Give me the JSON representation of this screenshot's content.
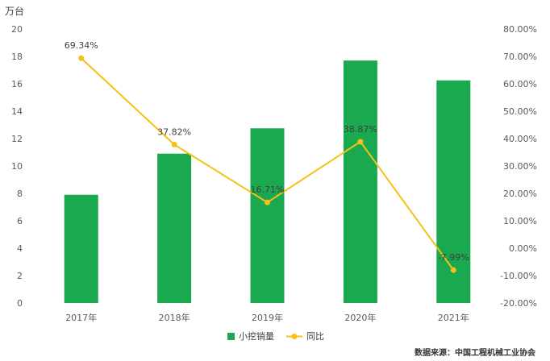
{
  "chart_data": {
    "type": "bar",
    "left_unit": "万台",
    "categories": [
      "2017年",
      "2018年",
      "2019年",
      "2020年",
      "2021年"
    ],
    "series": [
      {
        "name": "小挖销量",
        "type": "bar",
        "axis": "left",
        "values": [
          7.9,
          10.9,
          12.75,
          17.7,
          16.25
        ]
      },
      {
        "name": "同比",
        "type": "line",
        "axis": "right",
        "values": [
          69.34,
          37.82,
          16.71,
          38.87,
          -7.99
        ]
      }
    ],
    "point_labels": [
      "69.34%",
      "37.82%",
      "16.71%",
      "38.87%",
      "-7.99%"
    ],
    "left_ylim": [
      0,
      20
    ],
    "left_ticks": [
      "0",
      "2",
      "4",
      "6",
      "8",
      "10",
      "12",
      "14",
      "16",
      "18",
      "20"
    ],
    "right_ylim": [
      -20,
      80
    ],
    "right_ticks": [
      "-20.00%",
      "-10.00%",
      "0.00%",
      "10.00%",
      "20.00%",
      "30.00%",
      "40.00%",
      "50.00%",
      "60.00%",
      "70.00%",
      "80.00%"
    ],
    "legend_position": "bottom-center",
    "grid": false,
    "colors": {
      "bar": "#1aa94f",
      "line": "#f5c115"
    },
    "source": "数据来源：中国工程机械工业协会"
  }
}
